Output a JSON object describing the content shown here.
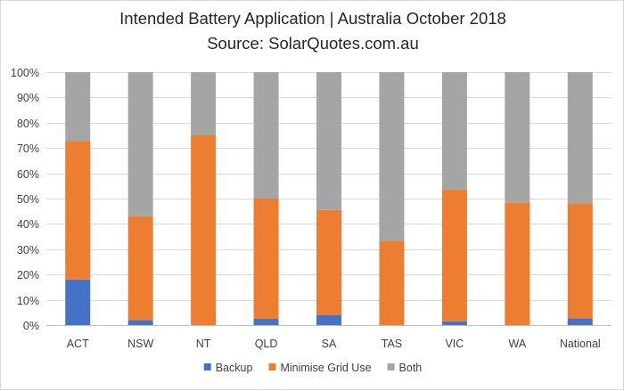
{
  "chart_data": {
    "type": "bar",
    "stacked": true,
    "title": "Intended Battery Application | Australia October 2018",
    "subtitle": "Source: SolarQuotes.com.au",
    "categories": [
      "ACT",
      "NSW",
      "NT",
      "QLD",
      "SA",
      "TAS",
      "VIC",
      "WA",
      "National"
    ],
    "series": [
      {
        "name": "Backup",
        "color": "#4472c4",
        "values": [
          18,
          2,
          0,
          2.5,
          4,
          0,
          1.5,
          0,
          2.7
        ]
      },
      {
        "name": "Minimise Grid Use",
        "color": "#ed7d31",
        "values": [
          54.7,
          41,
          75,
          47.5,
          41.5,
          33.3,
          52,
          48.5,
          45.5
        ]
      },
      {
        "name": "Both",
        "color": "#a5a5a5",
        "values": [
          27.3,
          57,
          25,
          50,
          54.5,
          66.7,
          46.5,
          51.5,
          51.8
        ]
      }
    ],
    "y_ticks": [
      "0%",
      "10%",
      "20%",
      "30%",
      "40%",
      "50%",
      "60%",
      "70%",
      "80%",
      "90%",
      "100%"
    ],
    "ylim": [
      0,
      100
    ],
    "grid": true,
    "legend_position": "bottom"
  }
}
